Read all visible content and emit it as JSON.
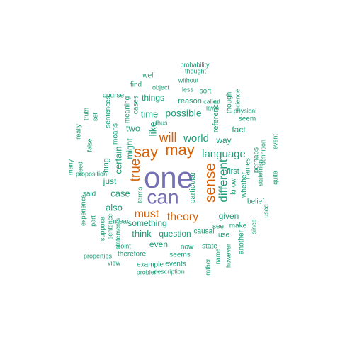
{
  "colors": {
    "green": "#1b9e77",
    "orange": "#d95f02",
    "purple": "#7570b3"
  },
  "words": [
    {
      "text": "one",
      "color": "purple"
    },
    {
      "text": "can",
      "color": "purple"
    },
    {
      "text": "say",
      "color": "orange"
    },
    {
      "text": "may",
      "color": "orange"
    },
    {
      "text": "will",
      "color": "orange"
    },
    {
      "text": "sense",
      "color": "orange"
    },
    {
      "text": "true",
      "color": "orange"
    },
    {
      "text": "must",
      "color": "orange"
    },
    {
      "text": "theory",
      "color": "orange"
    },
    {
      "text": "different",
      "color": "green"
    },
    {
      "text": "language",
      "color": "green"
    },
    {
      "text": "world",
      "color": "green"
    },
    {
      "text": "like",
      "color": "green"
    },
    {
      "text": "case",
      "color": "green"
    },
    {
      "text": "possible",
      "color": "green"
    },
    {
      "text": "time",
      "color": "green"
    },
    {
      "text": "certain",
      "color": "green"
    },
    {
      "text": "might",
      "color": "green"
    },
    {
      "text": "two",
      "color": "green"
    },
    {
      "text": "way",
      "color": "green"
    },
    {
      "text": "fact",
      "color": "green"
    },
    {
      "text": "reference",
      "color": "green"
    },
    {
      "text": "first",
      "color": "green"
    },
    {
      "text": "just",
      "color": "green"
    },
    {
      "text": "also",
      "color": "green"
    },
    {
      "text": "think",
      "color": "green"
    },
    {
      "text": "question",
      "color": "green"
    },
    {
      "text": "given",
      "color": "green"
    },
    {
      "text": "something",
      "color": "green"
    },
    {
      "text": "even",
      "color": "green"
    },
    {
      "text": "reason",
      "color": "green"
    },
    {
      "text": "things",
      "color": "green"
    },
    {
      "text": "particular",
      "color": "green"
    },
    {
      "text": "thing",
      "color": "green"
    },
    {
      "text": "means",
      "color": "green"
    },
    {
      "text": "whether",
      "color": "green"
    },
    {
      "text": "names",
      "color": "green"
    },
    {
      "text": "know",
      "color": "green"
    },
    {
      "text": "perhaps",
      "color": "green"
    },
    {
      "text": "belief",
      "color": "green"
    },
    {
      "text": "causal",
      "color": "green"
    },
    {
      "text": "mean",
      "color": "green"
    },
    {
      "text": "see",
      "color": "green"
    },
    {
      "text": "make",
      "color": "green"
    },
    {
      "text": "use",
      "color": "green"
    },
    {
      "text": "said",
      "color": "green"
    },
    {
      "text": "now",
      "color": "green"
    },
    {
      "text": "seems",
      "color": "green"
    },
    {
      "text": "state",
      "color": "green"
    },
    {
      "text": "another",
      "color": "green"
    },
    {
      "text": "events",
      "color": "green"
    },
    {
      "text": "example",
      "color": "green"
    },
    {
      "text": "therefore",
      "color": "green"
    },
    {
      "text": "point",
      "color": "green"
    },
    {
      "text": "properties",
      "color": "green"
    },
    {
      "text": "view",
      "color": "green"
    },
    {
      "text": "problem",
      "color": "green"
    },
    {
      "text": "description",
      "color": "green"
    },
    {
      "text": "rather",
      "color": "green"
    },
    {
      "text": "name",
      "color": "green"
    },
    {
      "text": "however",
      "color": "green"
    },
    {
      "text": "since",
      "color": "green"
    },
    {
      "text": "used",
      "color": "green"
    },
    {
      "text": "quite",
      "color": "green"
    },
    {
      "text": "event",
      "color": "green"
    },
    {
      "text": "definition",
      "color": "green"
    },
    {
      "text": "statement",
      "color": "green"
    },
    {
      "text": "seem",
      "color": "green"
    },
    {
      "text": "though",
      "color": "green"
    },
    {
      "text": "physical",
      "color": "green"
    },
    {
      "text": "science",
      "color": "green"
    },
    {
      "text": "called",
      "color": "green"
    },
    {
      "text": "laws",
      "color": "green"
    },
    {
      "text": "sort",
      "color": "green"
    },
    {
      "text": "less",
      "color": "green"
    },
    {
      "text": "object",
      "color": "green"
    },
    {
      "text": "find",
      "color": "green"
    },
    {
      "text": "well",
      "color": "green"
    },
    {
      "text": "without",
      "color": "green"
    },
    {
      "text": "thought",
      "color": "green"
    },
    {
      "text": "probability",
      "color": "green"
    },
    {
      "text": "course",
      "color": "green"
    },
    {
      "text": "sentences",
      "color": "green"
    },
    {
      "text": "meaning",
      "color": "green"
    },
    {
      "text": "cases",
      "color": "green"
    },
    {
      "text": "thus",
      "color": "green"
    },
    {
      "text": "truth",
      "color": "green"
    },
    {
      "text": "set",
      "color": "green"
    },
    {
      "text": "really",
      "color": "green"
    },
    {
      "text": "false",
      "color": "green"
    },
    {
      "text": "need",
      "color": "green"
    },
    {
      "text": "many",
      "color": "green"
    },
    {
      "text": "proposition",
      "color": "green"
    },
    {
      "text": "experience",
      "color": "green"
    },
    {
      "text": "part",
      "color": "green"
    },
    {
      "text": "suppose",
      "color": "green"
    },
    {
      "text": "sentence",
      "color": "green"
    },
    {
      "text": "statements",
      "color": "green"
    },
    {
      "text": "terms",
      "color": "green"
    },
    {
      "text": "kind",
      "color": "green"
    }
  ]
}
